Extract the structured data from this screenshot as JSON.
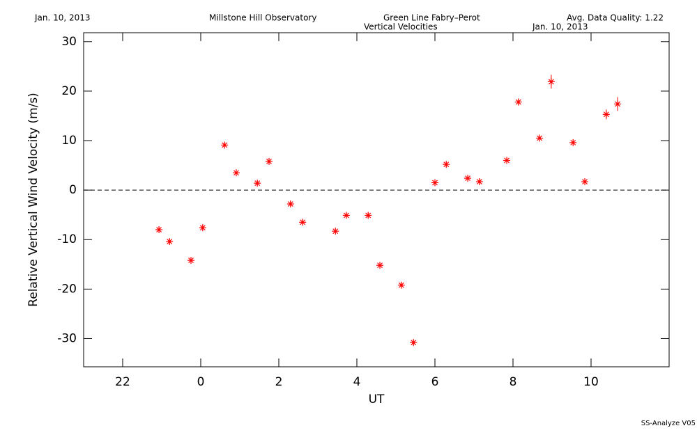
{
  "chart_data": {
    "type": "scatter",
    "header": [
      "Jan. 10, 2013",
      "Millstone Hill Observatory",
      "Green Line Fabry–Perot",
      "Avg. Data Quality: 1.22"
    ],
    "title": "Vertical Velocities",
    "subtitle": "Jan. 10, 2013",
    "footer": "SS-Analyze V05",
    "xlabel": "UT",
    "ylabel": "Relative Vertical Wind Velocity (m/s)",
    "x": [
      -1.07,
      -0.8,
      -0.25,
      0.05,
      0.61,
      0.91,
      1.45,
      1.75,
      2.3,
      2.61,
      3.45,
      3.73,
      4.29,
      4.59,
      5.14,
      5.45,
      6.0,
      6.29,
      6.84,
      7.14,
      7.84,
      8.14,
      8.68,
      8.98,
      9.54,
      9.84,
      10.39,
      10.68
    ],
    "values": [
      -8.0,
      -10.4,
      -14.2,
      -7.6,
      9.1,
      3.5,
      1.4,
      5.8,
      -2.8,
      -6.5,
      -8.3,
      -5.1,
      -5.1,
      -15.2,
      -19.2,
      -30.8,
      1.5,
      5.2,
      2.4,
      1.7,
      6.0,
      17.8,
      10.5,
      21.9,
      9.6,
      1.7,
      15.3,
      17.4
    ],
    "errors": [
      0.5,
      0.5,
      0.5,
      0.5,
      0.5,
      0.5,
      0.5,
      0.5,
      0.5,
      0.5,
      0.5,
      0.5,
      0.5,
      0.5,
      0.5,
      0.5,
      0.5,
      0.5,
      0.5,
      0.5,
      0.5,
      0.7,
      0.5,
      1.4,
      0.5,
      0.5,
      1.0,
      1.4
    ],
    "color": "#ff0000",
    "xlim": [
      -3,
      12
    ],
    "xticks": [
      {
        "value": -2,
        "label": "22"
      },
      0,
      2,
      4,
      6,
      8,
      10
    ],
    "ylim": [
      -35.7,
      31.8
    ],
    "yticks": [
      -30,
      -20,
      -10,
      0,
      10,
      20,
      30
    ],
    "reference_line": 0
  }
}
